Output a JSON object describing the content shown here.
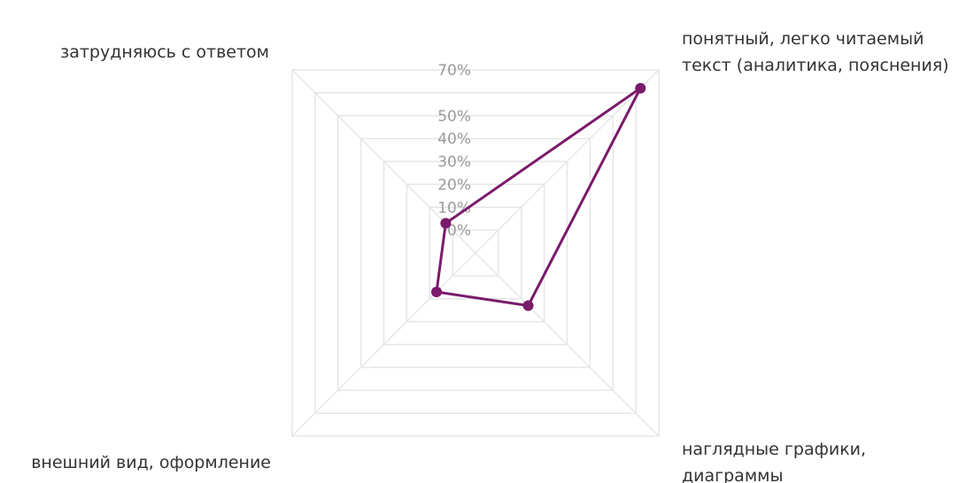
{
  "chart_data": {
    "type": "radar",
    "title": "",
    "axes": [
      {
        "key": "readable_text",
        "label_lines": [
          "понятный, легко читаемый",
          "текст (аналитика, пояснения)"
        ]
      },
      {
        "key": "visual_charts",
        "label_lines": [
          "наглядные графики,",
          "диаграммы"
        ]
      },
      {
        "key": "appearance",
        "label_lines": [
          "внешний вид, оформление"
        ]
      },
      {
        "key": "hard_to_answer",
        "label_lines": [
          "затрудняюсь с ответом"
        ]
      }
    ],
    "series": [
      {
        "values": [
          62,
          13,
          7,
          3
        ]
      }
    ],
    "series_color": "#7a1a6b",
    "grid_color": "#e6e6e6",
    "range": [
      -10,
      70
    ],
    "ticks": [
      "0%",
      "10%",
      "20%",
      "30%",
      "40%",
      "50%",
      "70%"
    ],
    "tick_values": [
      0,
      10,
      20,
      30,
      40,
      50,
      70
    ]
  }
}
